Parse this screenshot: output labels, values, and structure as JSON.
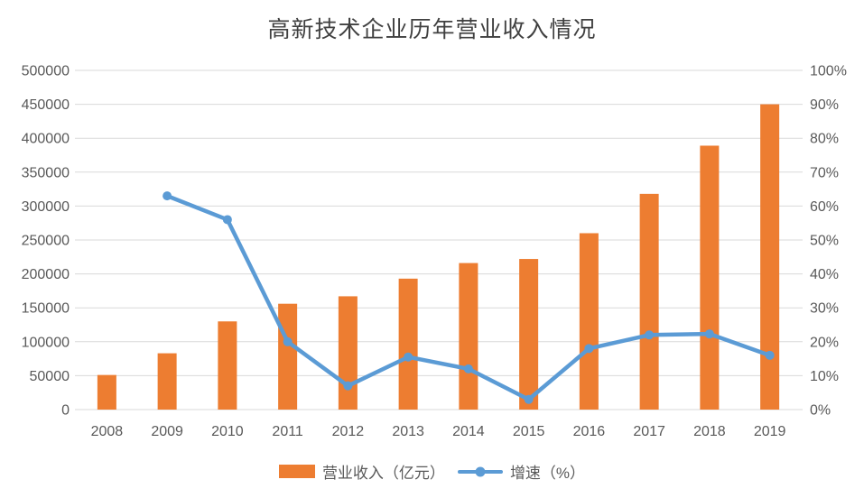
{
  "chart": {
    "title": "高新技术企业历年营业收入情况",
    "legend": [
      {
        "label": "营业收入（亿元）",
        "swatch": "bar-swatch-icon"
      },
      {
        "label": "增速（%）",
        "swatch": "line-swatch-icon"
      }
    ]
  },
  "chart_data": {
    "type": "bar+line combo",
    "title": "高新技术企业历年营业收入情况",
    "categories": [
      "2008",
      "2009",
      "2010",
      "2011",
      "2012",
      "2013",
      "2014",
      "2015",
      "2016",
      "2017",
      "2018",
      "2019"
    ],
    "series": [
      {
        "name": "营业收入（亿元）",
        "type": "bar",
        "axis": "left",
        "color": "#ED7D31",
        "values": [
          51000,
          83000,
          130000,
          156000,
          167000,
          193000,
          216000,
          222000,
          260000,
          318000,
          389000,
          450000
        ]
      },
      {
        "name": "增速（%）",
        "type": "line",
        "axis": "right",
        "color": "#5B9BD5",
        "values": [
          null,
          63,
          56,
          20,
          7,
          15.5,
          12,
          3,
          18,
          22,
          22.3,
          16
        ]
      }
    ],
    "left_axis": {
      "min": 0,
      "max": 500000,
      "step": 50000,
      "tick_labels": [
        "0",
        "50000",
        "100000",
        "150000",
        "200000",
        "250000",
        "300000",
        "350000",
        "400000",
        "450000",
        "500000"
      ]
    },
    "right_axis": {
      "min": 0,
      "max": 100,
      "step": 10,
      "tick_labels": [
        "0%",
        "10%",
        "20%",
        "30%",
        "40%",
        "50%",
        "60%",
        "70%",
        "80%",
        "90%",
        "100%"
      ]
    },
    "grid": true,
    "legend_position": "bottom",
    "colors": {
      "grid": "#D9D9D9",
      "axis_text": "#595959",
      "title_text": "#404040",
      "background": "#FFFFFF"
    }
  }
}
